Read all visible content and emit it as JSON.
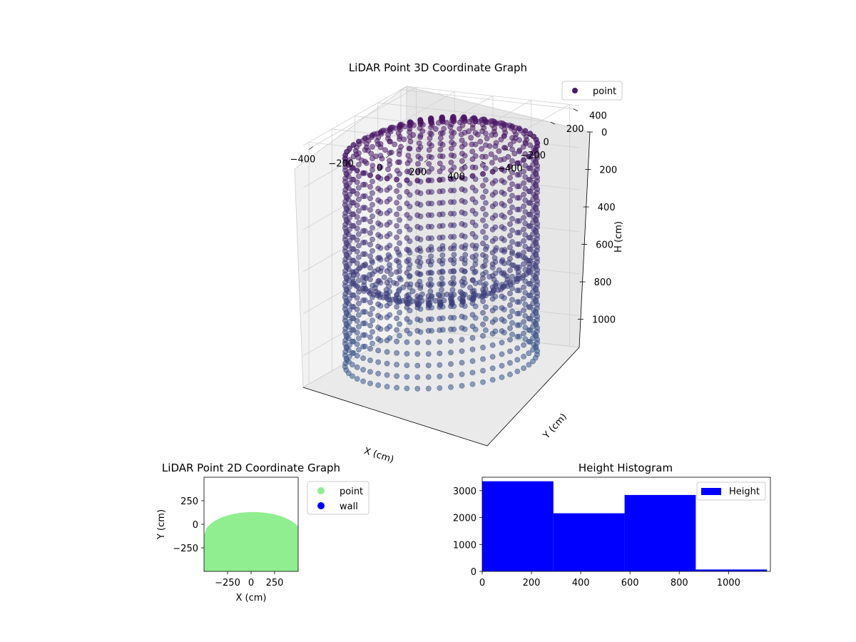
{
  "chart_data": [
    {
      "type": "scatter",
      "projection": "3d",
      "title": "LiDAR Point 3D Coordinate Graph",
      "xlabel": "X (cm)",
      "ylabel": "Y (cm)",
      "zlabel": "H (cm)",
      "xticks": [
        "−400",
        "−200",
        "0",
        "200",
        "400"
      ],
      "yticks": [
        "−400",
        "−200",
        "0",
        "200",
        "400"
      ],
      "zticks": [
        "0",
        "200",
        "400",
        "600",
        "800",
        "1000"
      ],
      "xlim": [
        -450,
        450
      ],
      "ylim": [
        -450,
        450
      ],
      "zlim": [
        0,
        1150
      ],
      "z_axis_inverted": true,
      "legend": {
        "placement": "top-right",
        "entries": [
          {
            "name": "point",
            "color": "#4a1a6b"
          }
        ]
      },
      "colormap": "viridis",
      "series": [
        {
          "name": "point",
          "shape": "domed cylindrical surface of points",
          "center": [
            0,
            0
          ],
          "radius": 430,
          "height_range": [
            0,
            1150
          ]
        }
      ]
    },
    {
      "type": "scatter",
      "title": "LiDAR Point 2D Coordinate Graph",
      "xlabel": "X (cm)",
      "ylabel": "Y (cm)",
      "xticks": [
        "−250",
        "0",
        "250"
      ],
      "yticks": [
        "250",
        "0",
        "−250"
      ],
      "xlim": [
        -500,
        500
      ],
      "ylim": [
        -500,
        500
      ],
      "legend": {
        "placement": "outside-right",
        "entries": [
          {
            "name": "point",
            "color": "#90ee90"
          },
          {
            "name": "wall",
            "color": "#0000ff"
          }
        ]
      },
      "series": [
        {
          "name": "point",
          "color": "#90ee90",
          "shape": "dome filling lower half of plot",
          "top_y": 130,
          "edge_y": -120
        },
        {
          "name": "wall",
          "color": "#0000ff",
          "points": []
        }
      ]
    },
    {
      "type": "bar",
      "subtype": "histogram",
      "title": "Height Histogram",
      "xticks": [
        "0",
        "200",
        "400",
        "600",
        "800",
        "1000"
      ],
      "yticks": [
        "0",
        "1000",
        "2000",
        "3000"
      ],
      "xlim": [
        0,
        1170
      ],
      "ylim": [
        0,
        3500
      ],
      "legend": {
        "placement": "top-right",
        "entries": [
          {
            "name": "Height",
            "color": "#0000ff"
          }
        ]
      },
      "bins": [
        {
          "start": 0,
          "end": 289,
          "count": 3350
        },
        {
          "start": 289,
          "end": 578,
          "count": 2160
        },
        {
          "start": 578,
          "end": 867,
          "count": 2840
        },
        {
          "start": 867,
          "end": 1156,
          "count": 70
        }
      ],
      "series": [
        {
          "name": "Height",
          "color": "#0000ff"
        }
      ]
    }
  ]
}
